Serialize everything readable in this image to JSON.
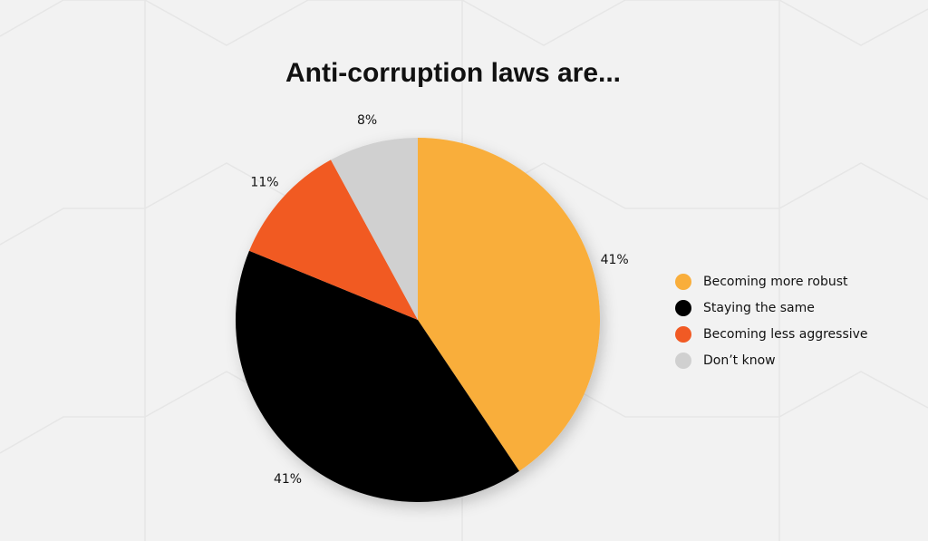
{
  "chart_data": {
    "type": "pie",
    "title": "Anti-corruption laws are...",
    "categories": [
      "Becoming more robust",
      "Staying the same",
      "Becoming less aggressive",
      "Don’t know"
    ],
    "values": [
      41,
      41,
      11,
      8
    ],
    "value_labels": [
      "41%",
      "41%",
      "11%",
      "8%"
    ],
    "colors": [
      "#f9ae3b",
      "#000000",
      "#f15a24",
      "#d0d0d0"
    ],
    "legend": "right"
  }
}
